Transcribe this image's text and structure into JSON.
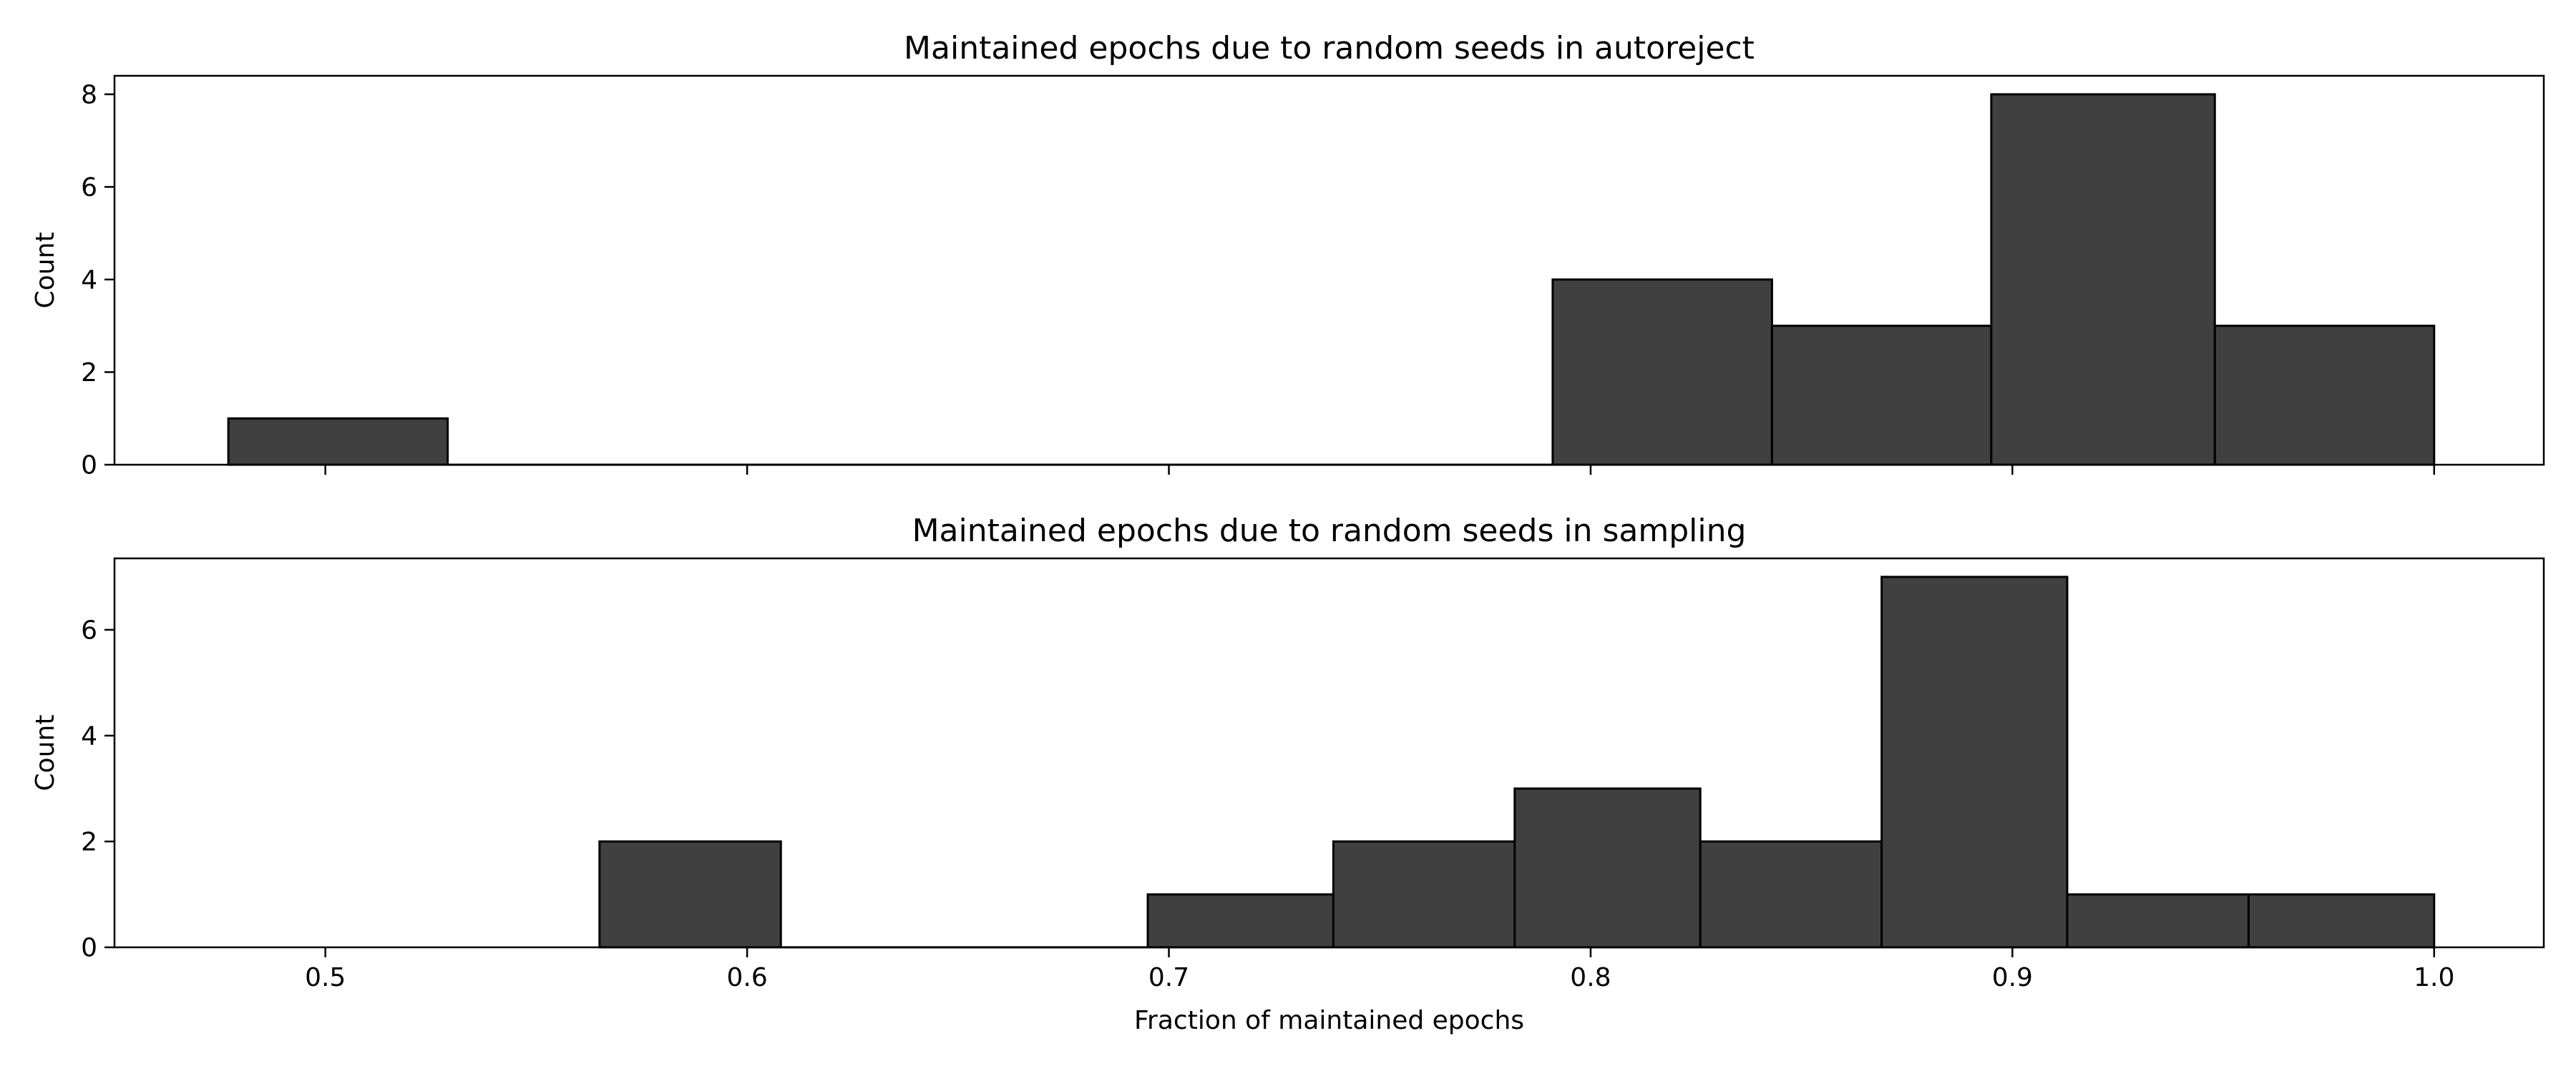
{
  "chart_data": [
    {
      "type": "bar",
      "title": "Maintained epochs due to random seeds in autoreject",
      "xlabel": "",
      "ylabel": "Count",
      "xlim": [
        0.45,
        1.026
      ],
      "ylim": [
        0,
        8.4
      ],
      "yticks": [
        0,
        2,
        4,
        6,
        8
      ],
      "xticks": [
        0.5,
        0.6,
        0.7,
        0.8,
        0.9,
        1.0
      ],
      "show_xtick_labels": false,
      "grid": false,
      "bar_color": "#404040",
      "edge_color": "#000000",
      "bins": [
        {
          "x0": 0.477,
          "x1": 0.529,
          "value": 1
        },
        {
          "x0": 0.529,
          "x1": 0.581,
          "value": 0
        },
        {
          "x0": 0.581,
          "x1": 0.634,
          "value": 0
        },
        {
          "x0": 0.634,
          "x1": 0.686,
          "value": 0
        },
        {
          "x0": 0.686,
          "x1": 0.738,
          "value": 0
        },
        {
          "x0": 0.738,
          "x1": 0.791,
          "value": 0
        },
        {
          "x0": 0.791,
          "x1": 0.843,
          "value": 4
        },
        {
          "x0": 0.843,
          "x1": 0.895,
          "value": 3
        },
        {
          "x0": 0.895,
          "x1": 0.948,
          "value": 8
        },
        {
          "x0": 0.948,
          "x1": 1.0,
          "value": 3
        }
      ]
    },
    {
      "type": "bar",
      "title": "Maintained epochs due to random seeds in sampling",
      "xlabel": "Fraction of maintained epochs",
      "ylabel": "Count",
      "xlim": [
        0.45,
        1.026
      ],
      "ylim": [
        0,
        7.35
      ],
      "yticks": [
        0,
        2,
        4,
        6
      ],
      "xticks": [
        0.5,
        0.6,
        0.7,
        0.8,
        0.9,
        1.0
      ],
      "show_xtick_labels": true,
      "grid": false,
      "bar_color": "#404040",
      "edge_color": "#000000",
      "bins": [
        {
          "x0": 0.565,
          "x1": 0.608,
          "value": 2
        },
        {
          "x0": 0.608,
          "x1": 0.652,
          "value": 0
        },
        {
          "x0": 0.652,
          "x1": 0.695,
          "value": 0
        },
        {
          "x0": 0.695,
          "x1": 0.739,
          "value": 1
        },
        {
          "x0": 0.739,
          "x1": 0.782,
          "value": 2
        },
        {
          "x0": 0.782,
          "x1": 0.826,
          "value": 3
        },
        {
          "x0": 0.826,
          "x1": 0.869,
          "value": 2
        },
        {
          "x0": 0.869,
          "x1": 0.913,
          "value": 7
        },
        {
          "x0": 0.913,
          "x1": 0.956,
          "value": 1
        },
        {
          "x0": 0.956,
          "x1": 1.0,
          "value": 1
        }
      ]
    }
  ]
}
